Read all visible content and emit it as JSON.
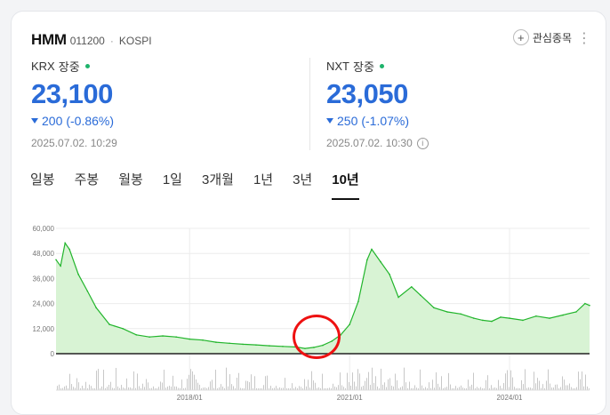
{
  "stock": {
    "name": "HMM",
    "code": "011200",
    "separator": "·",
    "market": "KOSPI"
  },
  "favorite_label": "관심종목",
  "more_icon": "⋮",
  "quotes": [
    {
      "exchange": "KRX",
      "status": "장중",
      "price": "23,100",
      "change": "200",
      "change_pct": "(-0.86%)",
      "time": "2025.07.02. 10:29"
    },
    {
      "exchange": "NXT",
      "status": "장중",
      "price": "23,050",
      "change": "250",
      "change_pct": "(-1.07%)",
      "time": "2025.07.02. 10:30"
    }
  ],
  "tabs": [
    "일봉",
    "주봉",
    "월봉",
    "1일",
    "3개월",
    "1년",
    "3년",
    "10년"
  ],
  "active_tab": "10년",
  "colors": {
    "price_blue": "#2a6bd8",
    "line_green": "#22b52c",
    "fill_green": "#d8f3d4",
    "live_dot": "#1eb36b",
    "marker_red": "#e11111"
  },
  "chart_data": {
    "type": "area",
    "ylim": [
      0,
      60000
    ],
    "yticks": [
      {
        "value": 60000,
        "label": "60,000"
      },
      {
        "value": 48000,
        "label": "48,000"
      },
      {
        "value": 36000,
        "label": "36,000"
      },
      {
        "value": 24000,
        "label": "24,000"
      },
      {
        "value": 12000,
        "label": "12,000"
      },
      {
        "value": 0,
        "label": "0"
      }
    ],
    "xticks": [
      {
        "date": "2018-01-01",
        "label": "2018/01"
      },
      {
        "date": "2021-01-01",
        "label": "2021/01"
      },
      {
        "date": "2024-01-01",
        "label": "2024/01"
      }
    ],
    "xlim": [
      "2015-07-01",
      "2025-07-02"
    ],
    "series": [
      {
        "points": [
          [
            "2015-07-01",
            45000
          ],
          [
            "2015-08-01",
            42000
          ],
          [
            "2015-09-01",
            53000
          ],
          [
            "2015-10-01",
            50000
          ],
          [
            "2015-12-01",
            38000
          ],
          [
            "2016-02-01",
            30000
          ],
          [
            "2016-04-01",
            22000
          ],
          [
            "2016-07-01",
            14000
          ],
          [
            "2016-10-01",
            12000
          ],
          [
            "2017-01-01",
            9000
          ],
          [
            "2017-04-01",
            8000
          ],
          [
            "2017-07-01",
            8500
          ],
          [
            "2017-10-01",
            8000
          ],
          [
            "2018-01-01",
            7000
          ],
          [
            "2018-04-01",
            6500
          ],
          [
            "2018-07-01",
            5500
          ],
          [
            "2018-10-01",
            5000
          ],
          [
            "2019-01-01",
            4500
          ],
          [
            "2019-04-01",
            4200
          ],
          [
            "2019-07-01",
            3800
          ],
          [
            "2019-10-01",
            3500
          ],
          [
            "2020-01-01",
            3200
          ],
          [
            "2020-03-01",
            2500
          ],
          [
            "2020-05-01",
            3000
          ],
          [
            "2020-07-01",
            4000
          ],
          [
            "2020-09-01",
            6000
          ],
          [
            "2020-11-01",
            9000
          ],
          [
            "2021-01-01",
            14000
          ],
          [
            "2021-03-01",
            25000
          ],
          [
            "2021-05-01",
            45000
          ],
          [
            "2021-06-01",
            50000
          ],
          [
            "2021-08-01",
            44000
          ],
          [
            "2021-10-01",
            38000
          ],
          [
            "2021-12-01",
            27000
          ],
          [
            "2022-03-01",
            32000
          ],
          [
            "2022-05-01",
            28000
          ],
          [
            "2022-08-01",
            22000
          ],
          [
            "2022-11-01",
            20000
          ],
          [
            "2023-02-01",
            19000
          ],
          [
            "2023-05-01",
            17000
          ],
          [
            "2023-07-01",
            16000
          ],
          [
            "2023-09-01",
            15500
          ],
          [
            "2023-11-01",
            17500
          ],
          [
            "2024-01-01",
            17000
          ],
          [
            "2024-04-01",
            16000
          ],
          [
            "2024-07-01",
            18000
          ],
          [
            "2024-10-01",
            17000
          ],
          [
            "2025-01-01",
            18500
          ],
          [
            "2025-04-01",
            20000
          ],
          [
            "2025-06-01",
            24000
          ],
          [
            "2025-07-02",
            23100
          ]
        ]
      }
    ]
  }
}
